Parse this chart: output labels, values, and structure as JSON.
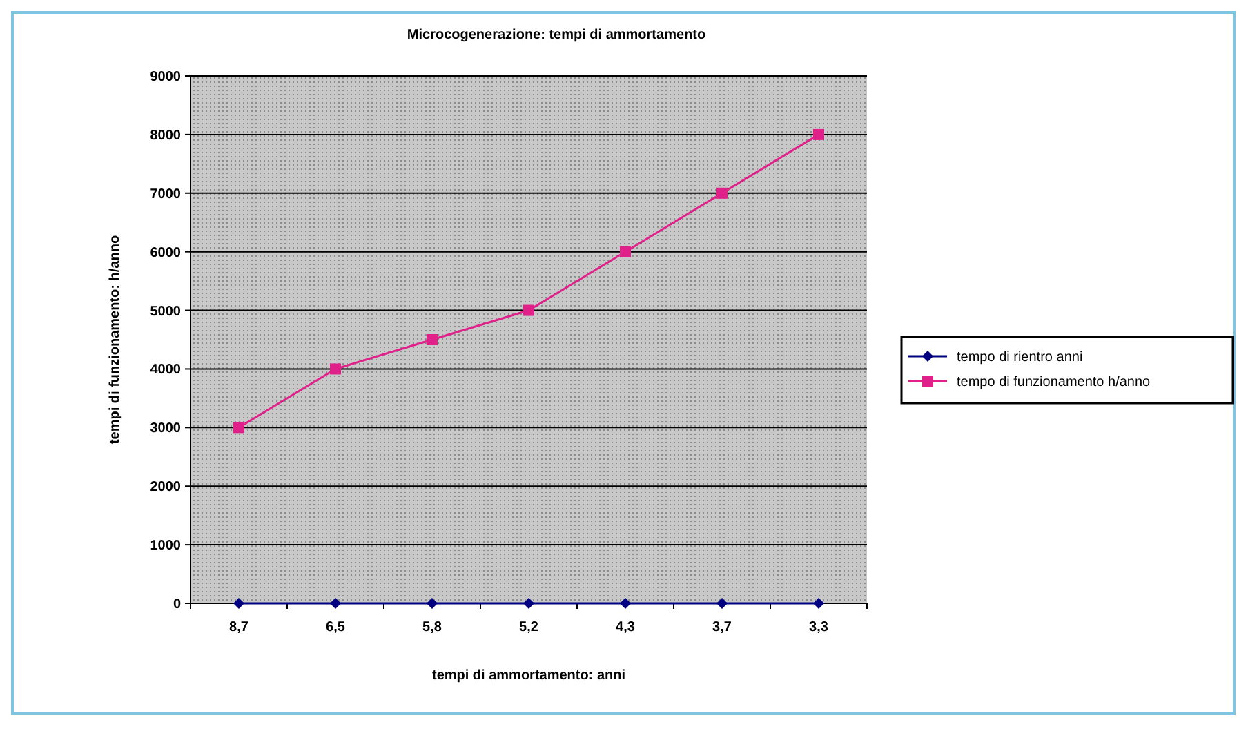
{
  "chart_data": {
    "type": "line",
    "title": "Microcogenerazione: tempi di ammortamento",
    "xlabel": "tempi di ammortamento: anni",
    "ylabel": "tempi di funzionamento: h/anno",
    "categories": [
      "8,7",
      "6,5",
      "5,8",
      "5,2",
      "4,3",
      "3,7",
      "3,3"
    ],
    "series": [
      {
        "name": "tempo di rientro anni",
        "color": "#000080",
        "marker": "diamond",
        "values": [
          0,
          0,
          0,
          0,
          0,
          0,
          0
        ]
      },
      {
        "name": "tempo di funzionamento h/anno",
        "color": "#e0218a",
        "marker": "square",
        "values": [
          3000,
          4000,
          4500,
          5000,
          6000,
          7000,
          8000
        ]
      }
    ],
    "ylim": [
      0,
      9000
    ],
    "yticks": [
      0,
      1000,
      2000,
      3000,
      4000,
      5000,
      6000,
      7000,
      8000,
      9000
    ],
    "grid": "y",
    "legend": "right"
  }
}
